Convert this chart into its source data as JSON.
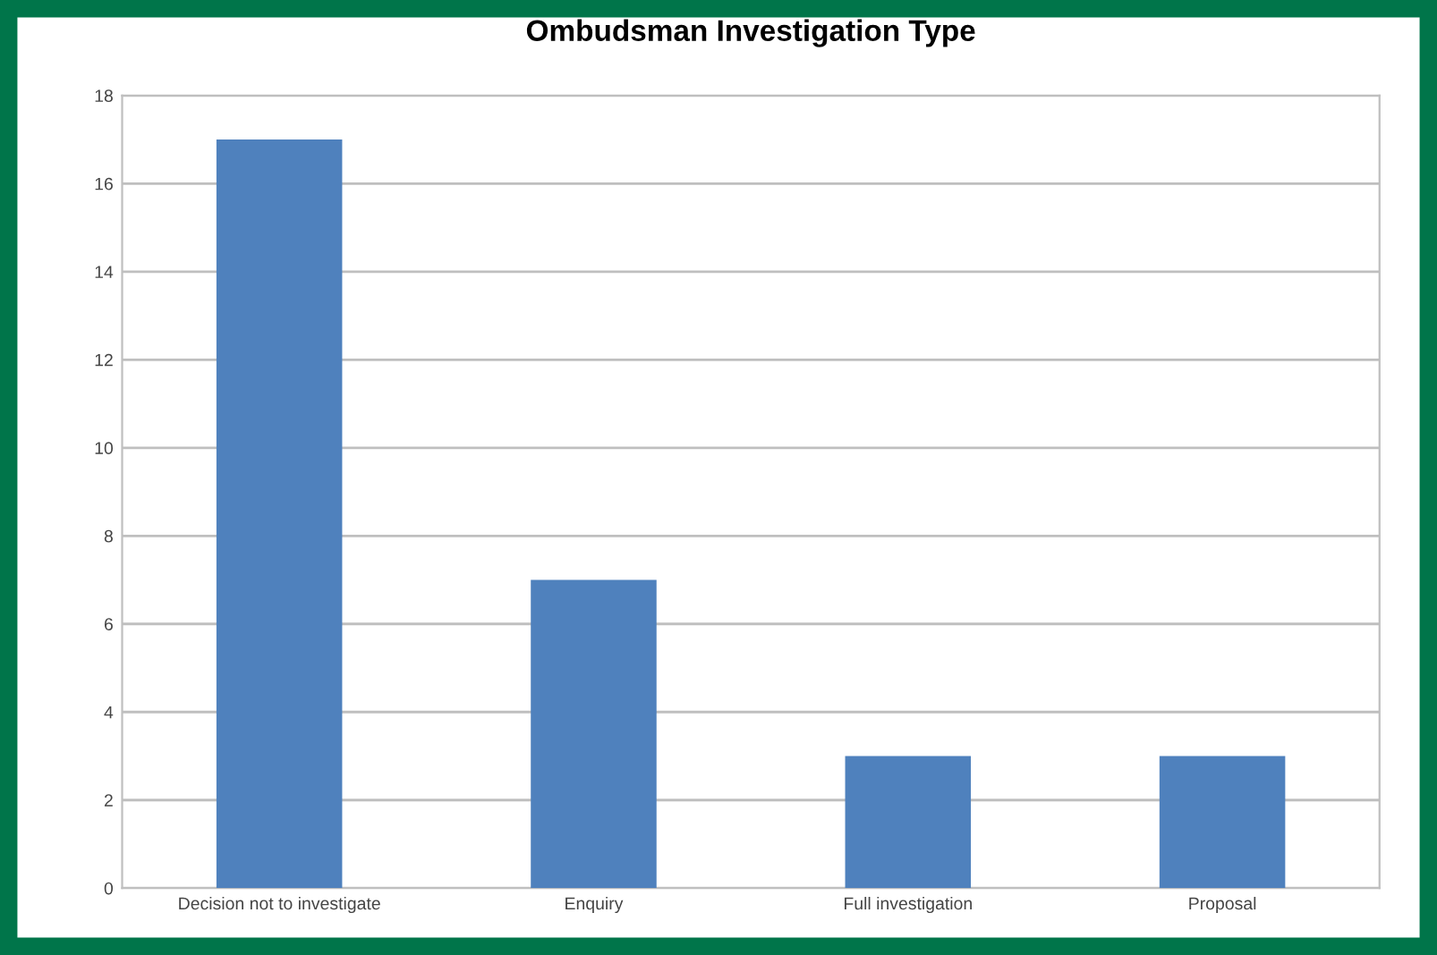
{
  "chart_data": {
    "type": "bar",
    "title": "Ombudsman Investigation Type",
    "categories": [
      "Decision not to investigate",
      "Enquiry",
      "Full investigation",
      "Proposal"
    ],
    "values": [
      17,
      7,
      3,
      3
    ],
    "color": "#4f81bd",
    "ylim": [
      0,
      18
    ],
    "yticks": [
      0,
      2,
      4,
      6,
      8,
      10,
      12,
      14,
      16,
      18
    ],
    "grid": "y",
    "legend": false
  }
}
